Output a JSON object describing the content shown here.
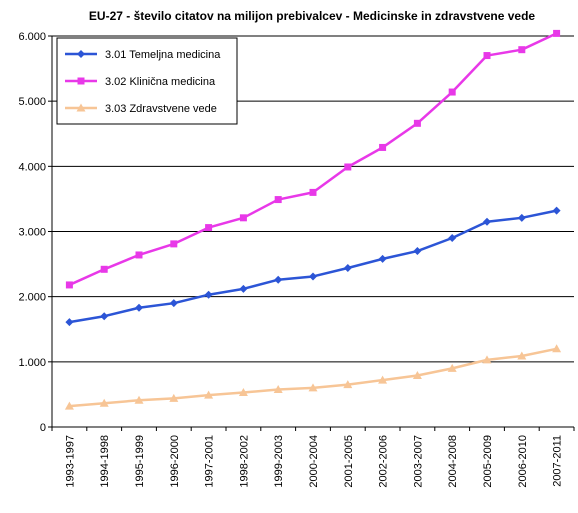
{
  "chart_data": {
    "type": "line",
    "title": "EU-27 - število citatov na milijon prebivalcev - Medicinske in zdravstvene vede",
    "xlabel": "",
    "ylabel": "",
    "categories": [
      "1993-1997",
      "1994-1998",
      "1995-1999",
      "1996-2000",
      "1997-2001",
      "1998-2002",
      "1999-2003",
      "2000-2004",
      "2001-2005",
      "2002-2006",
      "2003-2007",
      "2004-2008",
      "2005-2009",
      "2006-2010",
      "2007-2011"
    ],
    "ylim": [
      0,
      6000
    ],
    "yticks": [
      0,
      1000,
      2000,
      3000,
      4000,
      5000,
      6000
    ],
    "ytick_labels": [
      "0",
      "1.000",
      "2.000",
      "3.000",
      "4.000",
      "5.000",
      "6.000"
    ],
    "grid": "horizontal",
    "legend_position": "top-left",
    "series": [
      {
        "name": "3.01 Temeljna medicina",
        "color": "#2c55d6",
        "marker": "diamond",
        "values": [
          1610,
          1700,
          1830,
          1900,
          2030,
          2120,
          2260,
          2310,
          2440,
          2580,
          2700,
          2900,
          3150,
          3210,
          3320
        ]
      },
      {
        "name": "3.02 Klinična medicina",
        "color": "#e838e8",
        "marker": "square",
        "values": [
          2180,
          2420,
          2640,
          2810,
          3060,
          3210,
          3490,
          3600,
          3990,
          4290,
          4660,
          5140,
          5700,
          5790,
          6040
        ]
      },
      {
        "name": "3.03 Zdravstvene vede",
        "color": "#f7c596",
        "marker": "triangle",
        "values": [
          320,
          365,
          410,
          440,
          490,
          530,
          575,
          600,
          650,
          720,
          790,
          900,
          1030,
          1090,
          1200
        ]
      }
    ]
  }
}
